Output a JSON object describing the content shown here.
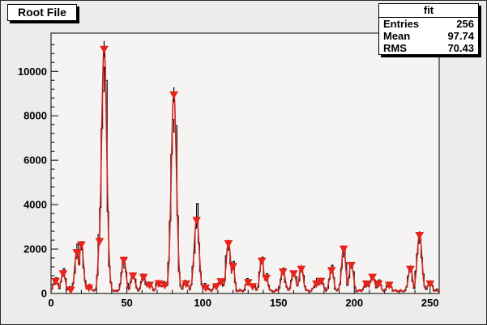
{
  "title_box": {
    "label": "Root File"
  },
  "stats_box": {
    "title": "fit",
    "rows": [
      {
        "label": "Entries",
        "value": "256"
      },
      {
        "label": "Mean",
        "value": "97.74"
      },
      {
        "label": "RMS",
        "value": "70.43"
      }
    ]
  },
  "chart_data": {
    "type": "line",
    "subtype": "root-histogram-with-fit",
    "title": "Root File",
    "xlabel": "",
    "ylabel": "",
    "xlim": [
      0,
      256
    ],
    "ylim": [
      0,
      11720
    ],
    "x_ticks": [
      0,
      50,
      100,
      150,
      200,
      250
    ],
    "y_ticks": [
      0,
      2000,
      4000,
      6000,
      8000,
      10000
    ],
    "x_minor_step": 10,
    "y_minor_step": 400,
    "grid": "off",
    "legend": "none",
    "marker_style": "inverted-triangle",
    "colors": {
      "canvas_bg": "#edecea",
      "frame_bg": "#f5f4f2",
      "frame_border": "#000000",
      "hist_line": "#000000",
      "fit_line": "#cf241d",
      "marker": "#e8231a",
      "text": "#000000"
    },
    "sigma_default": 1.3,
    "baseline": {
      "offset": 62,
      "a1": 58,
      "f1": 0.92,
      "a2": 46,
      "f2": 2.63
    },
    "peaks": [
      {
        "x": 3,
        "y": 550
      },
      {
        "x": 8,
        "y": 900
      },
      {
        "x": 13,
        "y": 160
      },
      {
        "x": 17,
        "y": 1850
      },
      {
        "x": 20,
        "y": 2200
      },
      {
        "x": 25,
        "y": 260
      },
      {
        "x": 32,
        "y": 2350,
        "s": 1.0
      },
      {
        "x": 35,
        "y": 11000,
        "s": 1.7
      },
      {
        "x": 48,
        "y": 1500
      },
      {
        "x": 54,
        "y": 800
      },
      {
        "x": 61,
        "y": 740
      },
      {
        "x": 65,
        "y": 380
      },
      {
        "x": 71,
        "y": 450
      },
      {
        "x": 75,
        "y": 380
      },
      {
        "x": 81,
        "y": 8950,
        "s": 1.7
      },
      {
        "x": 89,
        "y": 440
      },
      {
        "x": 96,
        "y": 3300,
        "s": 1.6
      },
      {
        "x": 102,
        "y": 260
      },
      {
        "x": 109,
        "y": 320
      },
      {
        "x": 112,
        "y": 540
      },
      {
        "x": 117,
        "y": 2250,
        "s": 1.4
      },
      {
        "x": 120,
        "y": 1230,
        "s": 1.0
      },
      {
        "x": 130,
        "y": 500
      },
      {
        "x": 133,
        "y": 320
      },
      {
        "x": 139,
        "y": 1470
      },
      {
        "x": 142,
        "y": 700,
        "s": 1.0
      },
      {
        "x": 153,
        "y": 980
      },
      {
        "x": 160,
        "y": 900
      },
      {
        "x": 165,
        "y": 1100
      },
      {
        "x": 175,
        "y": 440
      },
      {
        "x": 178,
        "y": 560
      },
      {
        "x": 185,
        "y": 1040
      },
      {
        "x": 193,
        "y": 2010
      },
      {
        "x": 198,
        "y": 1280
      },
      {
        "x": 208,
        "y": 440
      },
      {
        "x": 212,
        "y": 740
      },
      {
        "x": 216,
        "y": 440
      },
      {
        "x": 223,
        "y": 380
      },
      {
        "x": 237,
        "y": 1100
      },
      {
        "x": 243,
        "y": 2620,
        "s": 1.5
      },
      {
        "x": 250,
        "y": 440
      }
    ]
  }
}
